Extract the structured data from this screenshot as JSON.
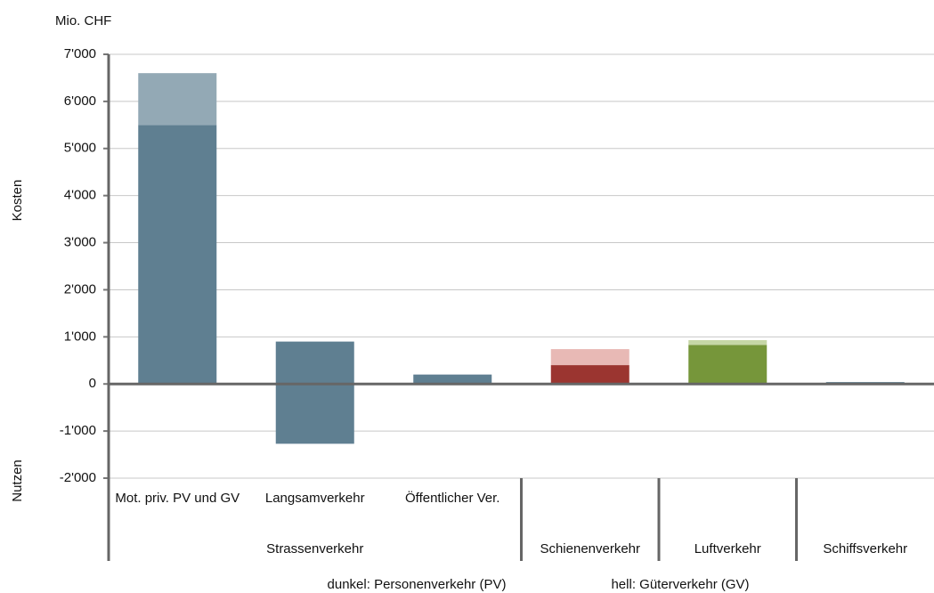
{
  "chart_data": {
    "type": "bar",
    "y_unit": "Mio. CHF",
    "y_label_positive": "Kosten",
    "y_label_negative": "Nutzen",
    "categories": [
      "Mot. priv. PV und GV",
      "Langsamverkehr",
      "Öffentlicher Ver.",
      null,
      null,
      null
    ],
    "groups": [
      "Strassenverkehr",
      "Strassenverkehr",
      "Strassenverkehr",
      "Schienenverkehr",
      "Luftverkehr",
      "Schiffsverkehr"
    ],
    "series": [
      {
        "name": "dunkel: Personenverkehr (PV)",
        "colors": [
          "#5f7f91",
          "#5f7f91",
          "#5f7f91",
          "#9b3530",
          "#76963a",
          "#5f7f91"
        ],
        "values": [
          5500,
          900,
          200,
          400,
          830,
          40
        ]
      },
      {
        "name": "hell: Güterverkehr (GV)",
        "colors": [
          "#93a9b5",
          "#93a9b5",
          "#93a9b5",
          "#e8b9b5",
          "#c6d6a6",
          "#93a9b5"
        ],
        "values": [
          1100,
          null,
          null,
          340,
          100,
          null
        ]
      },
      {
        "colors": [
          "#5f7f91",
          "#5f7f91",
          "#5f7f91",
          "#9b3530",
          "#76963a",
          "#5f7f91"
        ],
        "values": [
          null,
          -1270,
          null,
          null,
          null,
          null
        ]
      }
    ],
    "ylim": [
      -2000,
      7000
    ],
    "yticks": [
      {
        "value": -2000,
        "label": "-2'000"
      },
      {
        "value": -1000,
        "label": "-1'000"
      },
      0,
      {
        "value": 1000,
        "label": "1'000"
      },
      {
        "value": 2000,
        "label": "2'000"
      },
      {
        "value": 3000,
        "label": "3'000"
      },
      {
        "value": 4000,
        "label": "4'000"
      },
      {
        "value": 5000,
        "label": "5'000"
      },
      {
        "value": 6000,
        "label": "6'000"
      },
      {
        "value": 7000,
        "label": "7'000"
      }
    ],
    "grid": true
  }
}
